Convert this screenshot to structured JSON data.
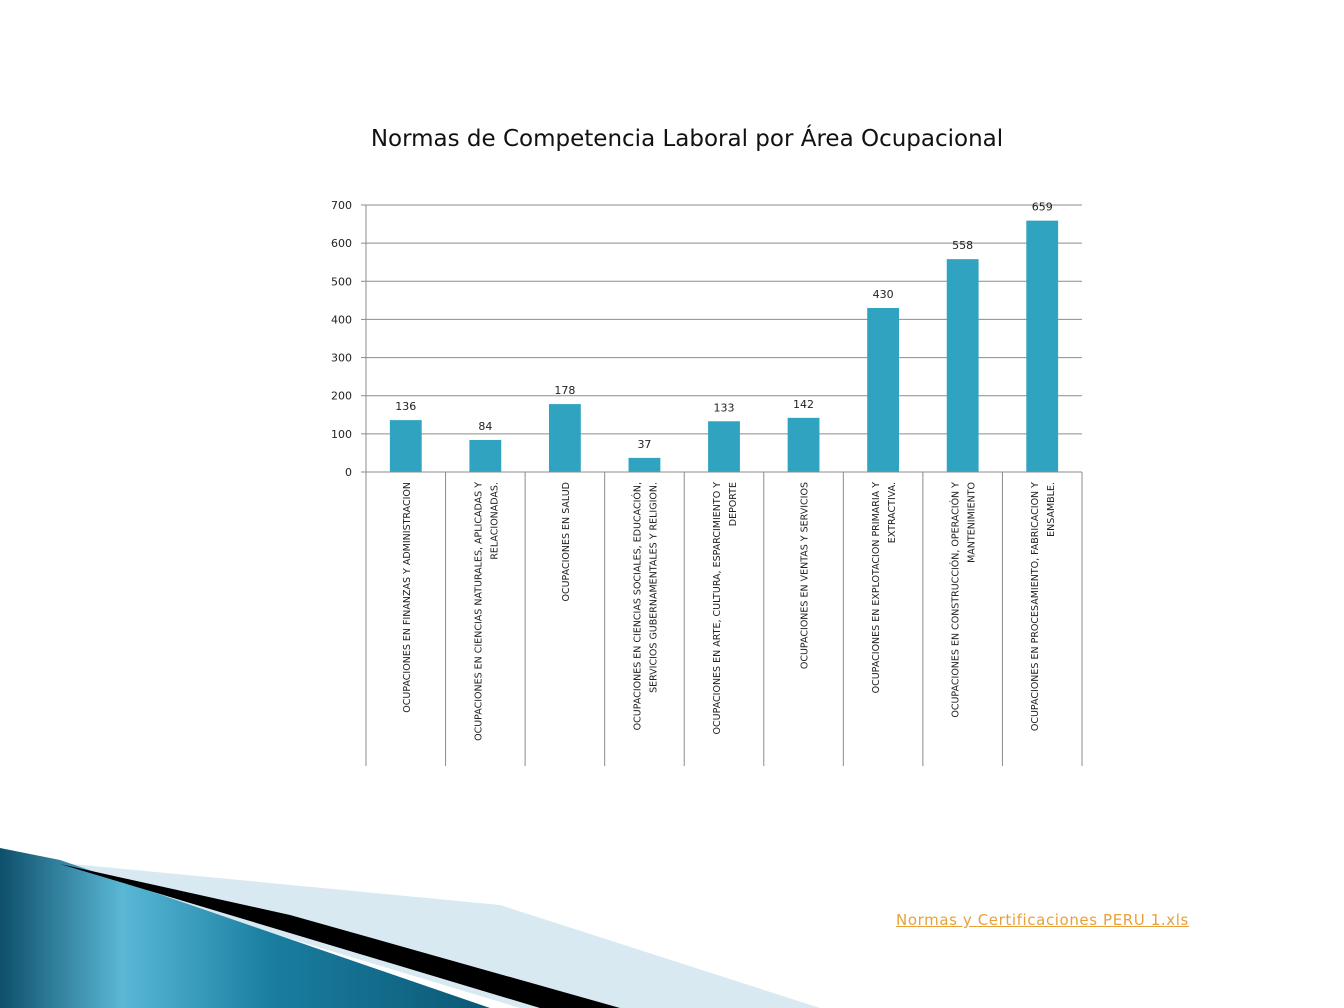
{
  "chart_data": {
    "type": "bar",
    "title": "Normas de Competencia Laboral por Área Ocupacional",
    "categories": [
      [
        "OCUPACIONES EN FINANZAS Y ADMINISTRACION"
      ],
      [
        "OCUPACIONES EN CIENCIAS NATURALES, APLICADAS Y",
        "RELACIONADAS."
      ],
      [
        "OCUPACIONES EN SALUD"
      ],
      [
        "OCUPACIONES EN CIENCIAS SOCIALES, EDUCACIÓN,",
        "SERVICIOS GUBERNAMENTALES Y RELIGION."
      ],
      [
        "OCUPACIONES EN ARTE, CULTURA, ESPARCIMIENTO Y",
        "DEPORTE"
      ],
      [
        "OCUPACIONES EN VENTAS Y SERVICIOS"
      ],
      [
        "OCUPACIONES EN EXPLOTACION PRIMARIA Y",
        "EXTRACTIVA."
      ],
      [
        "OCUPACIONES EN CONSTRUCCIÓN, OPERACIÓN Y",
        "MANTENIMIENTO"
      ],
      [
        "OCUPACIONES EN PROCESAMIENTO, FABRICACION Y",
        "ENSAMBLE."
      ]
    ],
    "values": [
      136,
      84,
      178,
      37,
      133,
      142,
      430,
      558,
      659
    ],
    "data_labels": [
      "136",
      "84",
      "178",
      "37",
      "133",
      "142",
      "430",
      "558",
      "659"
    ],
    "ylim": [
      0,
      700
    ],
    "yticks": [
      "0",
      "100",
      "200",
      "300",
      "400",
      "500",
      "600",
      "700"
    ],
    "grid": true,
    "legend": "none",
    "bar_color": "#2fa3c0"
  },
  "footer": {
    "link_text": "Normas y Certificaciones PERU 1.xls",
    "link_color": "#e8a03a"
  }
}
